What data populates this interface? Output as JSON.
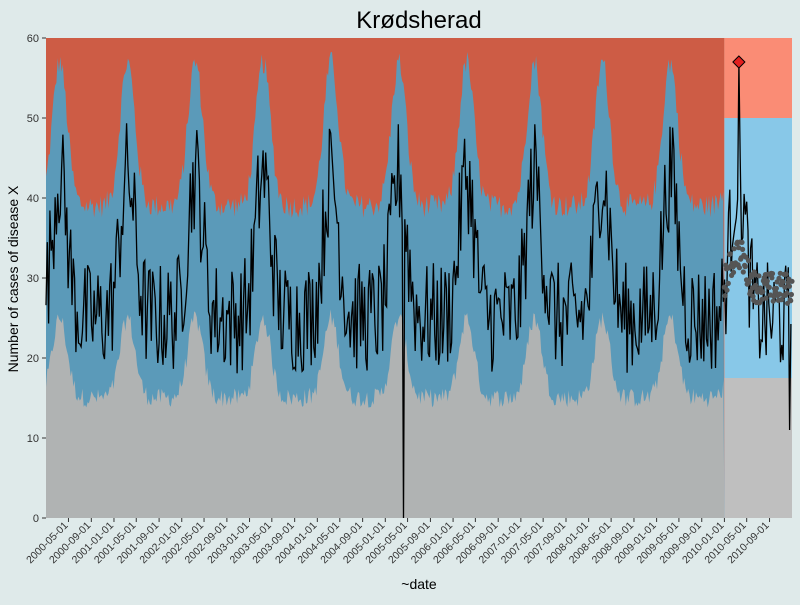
{
  "chart_data": {
    "type": "area",
    "title": "Krødsherad",
    "xlabel": "~date",
    "ylabel": "Number of cases of disease X",
    "ylim": [
      0,
      60
    ],
    "yticks": [
      0,
      10,
      20,
      30,
      40,
      50,
      60
    ],
    "x_start": "2000-01-01",
    "x_end": "2010-12-31",
    "forecast_start": "2010-01-01",
    "xticks": [
      "2000-05-01",
      "2000-09-01",
      "2001-01-01",
      "2001-05-01",
      "2001-09-01",
      "2002-01-01",
      "2002-05-01",
      "2002-09-01",
      "2003-01-01",
      "2003-05-01",
      "2003-09-01",
      "2004-01-01",
      "2004-05-01",
      "2004-09-01",
      "2005-01-01",
      "2005-05-01",
      "2005-09-01",
      "2006-01-01",
      "2006-05-01",
      "2006-09-01",
      "2007-01-01",
      "2007-05-01",
      "2007-09-01",
      "2008-01-01",
      "2008-05-01",
      "2008-09-01",
      "2009-01-01",
      "2009-05-01",
      "2009-09-01",
      "2010-01-01",
      "2010-05-01",
      "2010-09-01"
    ],
    "peak_dates": [
      "2000-03-15",
      "2001-03-15",
      "2002-03-15",
      "2003-03-15",
      "2004-03-15",
      "2005-03-15",
      "2006-03-15",
      "2007-03-15",
      "2008-03-15",
      "2009-03-15",
      "2010-03-15"
    ],
    "bands": {
      "lower_baseline_low": 15,
      "lower_baseline_high": 25,
      "upper_baseline_low": 39,
      "upper_baseline_high": 57,
      "forecast_lower": 17.5,
      "forecast_upper": 50
    },
    "colors": {
      "background": "#dfeaea",
      "high_zone": "#cd5c45",
      "normal_zone": "#5b9ab9",
      "low_zone": "#b0b3b3",
      "forecast_high_zone": "#fa8c75",
      "forecast_normal_zone": "#88c8e8",
      "forecast_low_zone": "#bfbfbf",
      "line": "#000000",
      "forecast_points": "#555555",
      "alert_marker": "#e3201f"
    },
    "series": [
      {
        "name": "observed",
        "kind": "line",
        "start": "2000-01-01",
        "step_days": 7,
        "anomalies": [
          {
            "date": "2005-04-08",
            "value": 0
          },
          {
            "date": "2010-03-20",
            "value": 57
          },
          {
            "date": "2010-12-20",
            "value": 11
          }
        ]
      },
      {
        "name": "forecast",
        "kind": "points",
        "start": "2010-01-01",
        "end": "2010-12-31",
        "approx_range": [
          26,
          35
        ]
      }
    ],
    "alert": {
      "date": "2010-03-20",
      "value": 57
    }
  }
}
